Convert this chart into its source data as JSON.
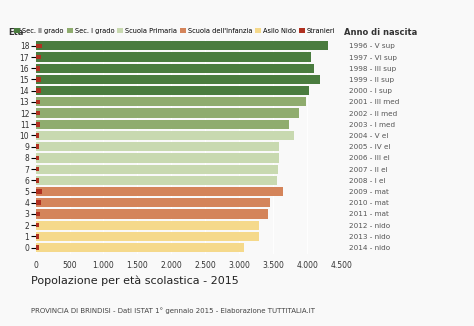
{
  "ages": [
    18,
    17,
    16,
    15,
    14,
    13,
    12,
    11,
    10,
    9,
    8,
    7,
    6,
    5,
    4,
    3,
    2,
    1,
    0
  ],
  "right_labels": [
    "1996 - V sup",
    "1997 - VI sup",
    "1998 - III sup",
    "1999 - II sup",
    "2000 - I sup",
    "2001 - III med",
    "2002 - II med",
    "2003 - I med",
    "2004 - V el",
    "2005 - IV el",
    "2006 - III el",
    "2007 - II el",
    "2008 - I el",
    "2009 - mat",
    "2010 - mat",
    "2011 - mat",
    "2012 - nido",
    "2013 - nido",
    "2014 - nido"
  ],
  "values": [
    4300,
    4050,
    4100,
    4180,
    4030,
    3980,
    3880,
    3730,
    3810,
    3590,
    3580,
    3570,
    3560,
    3640,
    3450,
    3420,
    3290,
    3290,
    3070
  ],
  "stranieri": [
    90,
    80,
    70,
    80,
    75,
    70,
    65,
    70,
    55,
    55,
    50,
    50,
    45,
    90,
    75,
    65,
    50,
    50,
    45
  ],
  "colors": {
    "sec2": "#4a7c3f",
    "sec1": "#8fac6e",
    "primaria": "#c8d9b0",
    "infanzia": "#d4845a",
    "nido": "#f5d98b",
    "stranieri": "#b03020"
  },
  "bar_colors": [
    "#4a7c3f",
    "#4a7c3f",
    "#4a7c3f",
    "#4a7c3f",
    "#4a7c3f",
    "#8fac6e",
    "#8fac6e",
    "#8fac6e",
    "#c8d9b0",
    "#c8d9b0",
    "#c8d9b0",
    "#c8d9b0",
    "#c8d9b0",
    "#d4845a",
    "#d4845a",
    "#d4845a",
    "#f5d98b",
    "#f5d98b",
    "#f5d98b"
  ],
  "legend_labels": [
    "Sec. II grado",
    "Sec. I grado",
    "Scuola Primaria",
    "Scuola dell'Infanzia",
    "Asilo Nido",
    "Stranieri"
  ],
  "legend_colors": [
    "#4a7c3f",
    "#8fac6e",
    "#c8d9b0",
    "#d4845a",
    "#f5d98b",
    "#b03020"
  ],
  "title": "Popolazione per età scolastica - 2015",
  "subtitle": "PROVINCIA DI BRINDISI - Dati ISTAT 1° gennaio 2015 - Elaborazione TUTTITALIA.IT",
  "eta_label": "Età",
  "anno_label": "Anno di nascita",
  "xlim": [
    0,
    4500
  ],
  "xticks": [
    0,
    500,
    1000,
    1500,
    2000,
    2500,
    3000,
    3500,
    4000,
    4500
  ],
  "xtick_labels": [
    "0",
    "500",
    "1.000",
    "1.500",
    "2.000",
    "2.500",
    "3.000",
    "3.500",
    "4.000",
    "4.500"
  ],
  "background_color": "#f9f9f9",
  "bar_height": 0.82
}
